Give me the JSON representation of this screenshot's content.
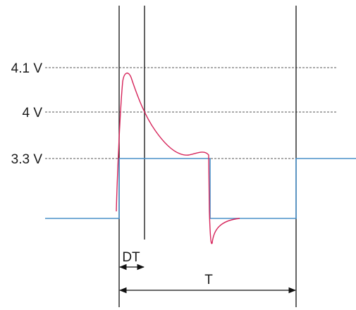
{
  "labels": {
    "level_high": "4.1 V",
    "level_mid": "4 V",
    "level_low": "3.3 V",
    "dead_time": "DT",
    "period": "T"
  },
  "colors": {
    "ideal_signal": "#4a90c8",
    "real_signal": "#d6245a",
    "guide_lines": "#222222",
    "reference_lines": "#555555"
  }
}
